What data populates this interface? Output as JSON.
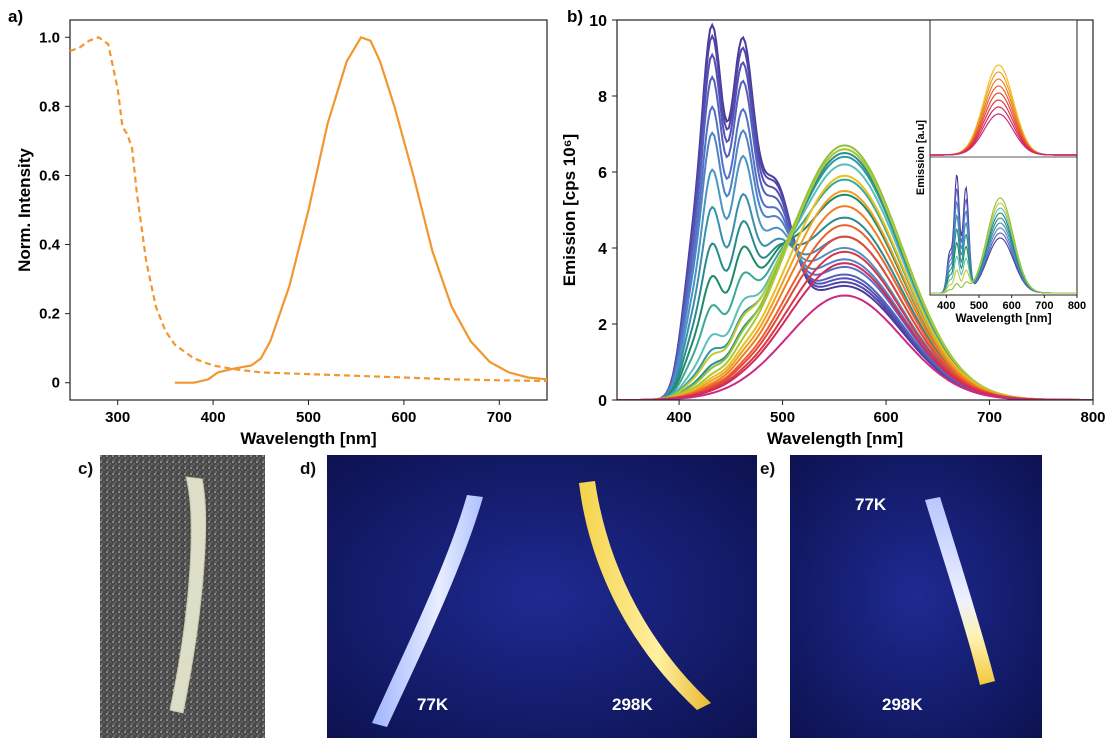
{
  "figure": {
    "panel_labels": {
      "a": "a)",
      "b": "b)",
      "c": "c)",
      "d": "d)",
      "e": "e)"
    }
  },
  "chart_data": [
    {
      "panel": "a)",
      "type": "line",
      "xlabel": "Wavelength [nm]",
      "ylabel": "Norm. Intensity",
      "xlim": [
        250,
        750
      ],
      "ylim": [
        -0.05,
        1.05
      ],
      "xticks": [
        300,
        400,
        500,
        600,
        700
      ],
      "yticks": [
        0,
        0.2,
        0.4,
        0.6,
        0.8,
        1.0
      ],
      "ytick_labels": [
        "0",
        "0.2",
        "0.4",
        "0.6",
        "0.8",
        "1.0"
      ],
      "grid": false,
      "series": [
        {
          "style": "dashed",
          "color": "#f2962f",
          "x": [
            250,
            260,
            270,
            280,
            290,
            300,
            305,
            310,
            315,
            320,
            330,
            340,
            350,
            360,
            380,
            400,
            420,
            450,
            500,
            550,
            600,
            650,
            700,
            750
          ],
          "y": [
            0.96,
            0.97,
            0.99,
            1.0,
            0.98,
            0.85,
            0.74,
            0.72,
            0.68,
            0.55,
            0.35,
            0.22,
            0.15,
            0.11,
            0.07,
            0.05,
            0.04,
            0.03,
            0.025,
            0.02,
            0.015,
            0.01,
            0.007,
            0.005
          ]
        },
        {
          "style": "solid",
          "color": "#f2962f",
          "x": [
            360,
            380,
            395,
            405,
            420,
            440,
            450,
            460,
            480,
            500,
            520,
            540,
            555,
            565,
            575,
            590,
            610,
            630,
            650,
            670,
            690,
            710,
            730,
            750
          ],
          "y": [
            0.0,
            0.0,
            0.01,
            0.03,
            0.04,
            0.05,
            0.07,
            0.12,
            0.28,
            0.5,
            0.75,
            0.93,
            1.0,
            0.99,
            0.93,
            0.8,
            0.6,
            0.38,
            0.22,
            0.12,
            0.06,
            0.03,
            0.015,
            0.01
          ]
        }
      ]
    },
    {
      "panel": "b)",
      "type": "line",
      "xlabel": "Wavelength [nm]",
      "ylabel": "Emission [cps 10⁶]",
      "xlim": [
        340,
        800
      ],
      "ylim": [
        0,
        10
      ],
      "xticks": [
        400,
        500,
        600,
        700,
        800
      ],
      "yticks": [
        0,
        2,
        4,
        6,
        8,
        10
      ],
      "grid": false,
      "series_note": "temperature series, blue-violet to magenta; emission at peaks 430/458 nm (left) and ~560 nm (right)",
      "series": [
        {
          "color": "#4b3b9c",
          "peak1": 9.7,
          "peak2": 9.0,
          "peak3": 3.0
        },
        {
          "color": "#5045a8",
          "peak1": 9.4,
          "peak2": 8.7,
          "peak3": 3.1
        },
        {
          "color": "#5350b2",
          "peak1": 8.9,
          "peak2": 8.3,
          "peak3": 3.2
        },
        {
          "color": "#5560bc",
          "peak1": 8.3,
          "peak2": 7.8,
          "peak3": 3.3
        },
        {
          "color": "#5470c6",
          "peak1": 7.5,
          "peak2": 7.0,
          "peak3": 3.5
        },
        {
          "color": "#4f82c6",
          "peak1": 6.8,
          "peak2": 6.4,
          "peak3": 3.7
        },
        {
          "color": "#4a95c2",
          "peak1": 5.8,
          "peak2": 5.7,
          "peak3": 4.0
        },
        {
          "color": "#3a8fb0",
          "peak1": 4.8,
          "peak2": 4.6,
          "peak3": 4.3
        },
        {
          "color": "#2a8a8c",
          "peak1": 3.8,
          "peak2": 3.8,
          "peak3": 4.8
        },
        {
          "color": "#1f8a6a",
          "peak1": 2.9,
          "peak2": 3.0,
          "peak3": 5.4
        },
        {
          "color": "#3aa896",
          "peak1": 2.1,
          "peak2": 2.2,
          "peak3": 5.8
        },
        {
          "color": "#5cc0b8",
          "peak1": 1.3,
          "peak2": 1.4,
          "peak3": 6.2
        },
        {
          "color": "#2f9aa0",
          "peak1": 0.9,
          "peak2": 1.0,
          "peak3": 6.4
        },
        {
          "color": "#2a8e8e",
          "peak1": 0.5,
          "peak2": 0.6,
          "peak3": 6.5
        },
        {
          "color": "#c8c832",
          "peak1": 0.75,
          "peak2": 0.9,
          "peak3": 6.6
        },
        {
          "color": "#90c040",
          "peak1": 0.4,
          "peak2": 0.5,
          "peak3": 6.7
        },
        {
          "color": "#a8c838",
          "peak1": 0.25,
          "peak2": 0.3,
          "peak3": 6.6
        },
        {
          "color": "#e8c020",
          "peak1": 0.2,
          "peak2": 0.25,
          "peak3": 5.9
        },
        {
          "color": "#f0a020",
          "peak1": 0.15,
          "peak2": 0.2,
          "peak3": 5.5
        },
        {
          "color": "#f07d20",
          "peak1": 0.1,
          "peak2": 0.15,
          "peak3": 5.1
        },
        {
          "color": "#ec6030",
          "peak1": 0.08,
          "peak2": 0.1,
          "peak3": 4.6
        },
        {
          "color": "#e44838",
          "peak1": 0.05,
          "peak2": 0.08,
          "peak3": 4.3
        },
        {
          "color": "#dc3545",
          "peak1": 0.03,
          "peak2": 0.05,
          "peak3": 3.9
        },
        {
          "color": "#d42a5a",
          "peak1": 0.02,
          "peak2": 0.03,
          "peak3": 3.6
        },
        {
          "color": "#cc2a80",
          "peak1": 0.0,
          "peak2": 0.0,
          "peak3": 2.75
        }
      ]
    },
    {
      "panel": "b) inset",
      "type": "line",
      "xlabel": "Wavelength [nm]",
      "ylabel": "Emission [a.u]",
      "xlim": [
        350,
        800
      ],
      "xticks": [
        400,
        500,
        600,
        700,
        800
      ],
      "subplots": [
        {
          "position": "upper",
          "description": "warm series, single band near 560 nm",
          "colors": [
            "#f0c020",
            "#f0a020",
            "#f07d20",
            "#ec6030",
            "#e44838",
            "#dc3545",
            "#d42a5a",
            "#cc2a80"
          ]
        },
        {
          "position": "lower",
          "description": "cool series, structured band at 430/458 nm plus band at 560 nm",
          "colors": [
            "#4b3b9c",
            "#5560bc",
            "#4f82c6",
            "#3a8fb0",
            "#2a8a8c",
            "#1f8a6a",
            "#5cc0b8",
            "#c8c832",
            "#90c040"
          ]
        }
      ]
    }
  ],
  "photos": {
    "d": {
      "label_cold": "77K",
      "label_warm": "298K"
    },
    "e": {
      "label_cold": "77K",
      "label_warm": "298K"
    }
  }
}
